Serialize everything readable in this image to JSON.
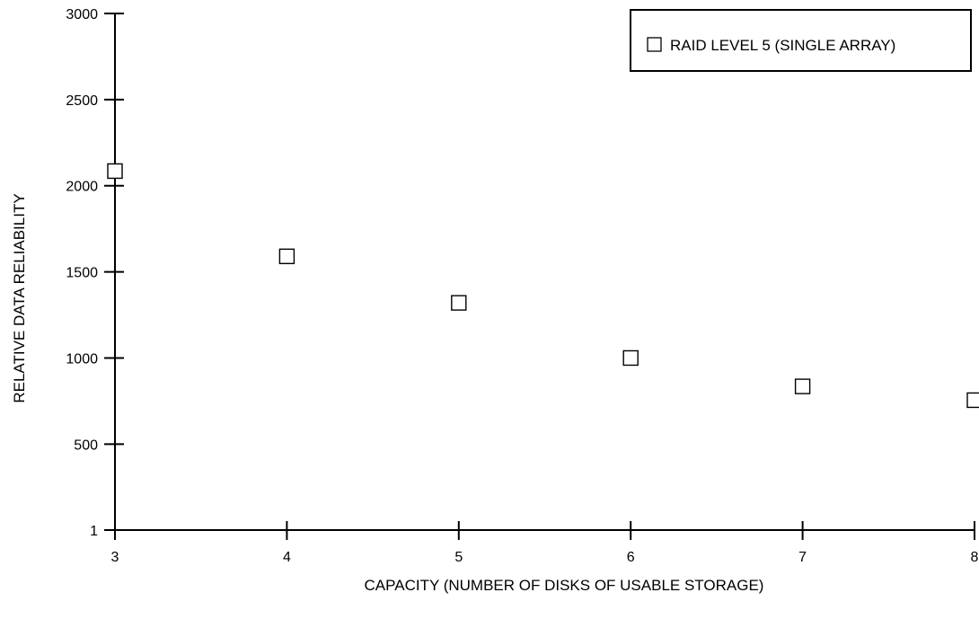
{
  "chart_data": {
    "type": "scatter",
    "title": "",
    "xlabel": "CAPACITY (NUMBER OF DISKS OF USABLE STORAGE)",
    "ylabel": "RELATIVE DATA RELIABILITY",
    "xlim": [
      3,
      8
    ],
    "ylim": [
      1,
      3000
    ],
    "x_ticks": [
      3,
      4,
      5,
      6,
      7,
      8
    ],
    "y_ticks": [
      1,
      500,
      1000,
      1500,
      2000,
      2500,
      3000
    ],
    "grid": false,
    "legend_position": "top-right",
    "series": [
      {
        "name": "RAID LEVEL 5 (SINGLE ARRAY)",
        "marker": "open-square",
        "color": "#000000",
        "x": [
          3,
          4,
          5,
          6,
          7,
          8
        ],
        "y": [
          2085,
          1590,
          1320,
          1000,
          835,
          755
        ]
      }
    ]
  }
}
